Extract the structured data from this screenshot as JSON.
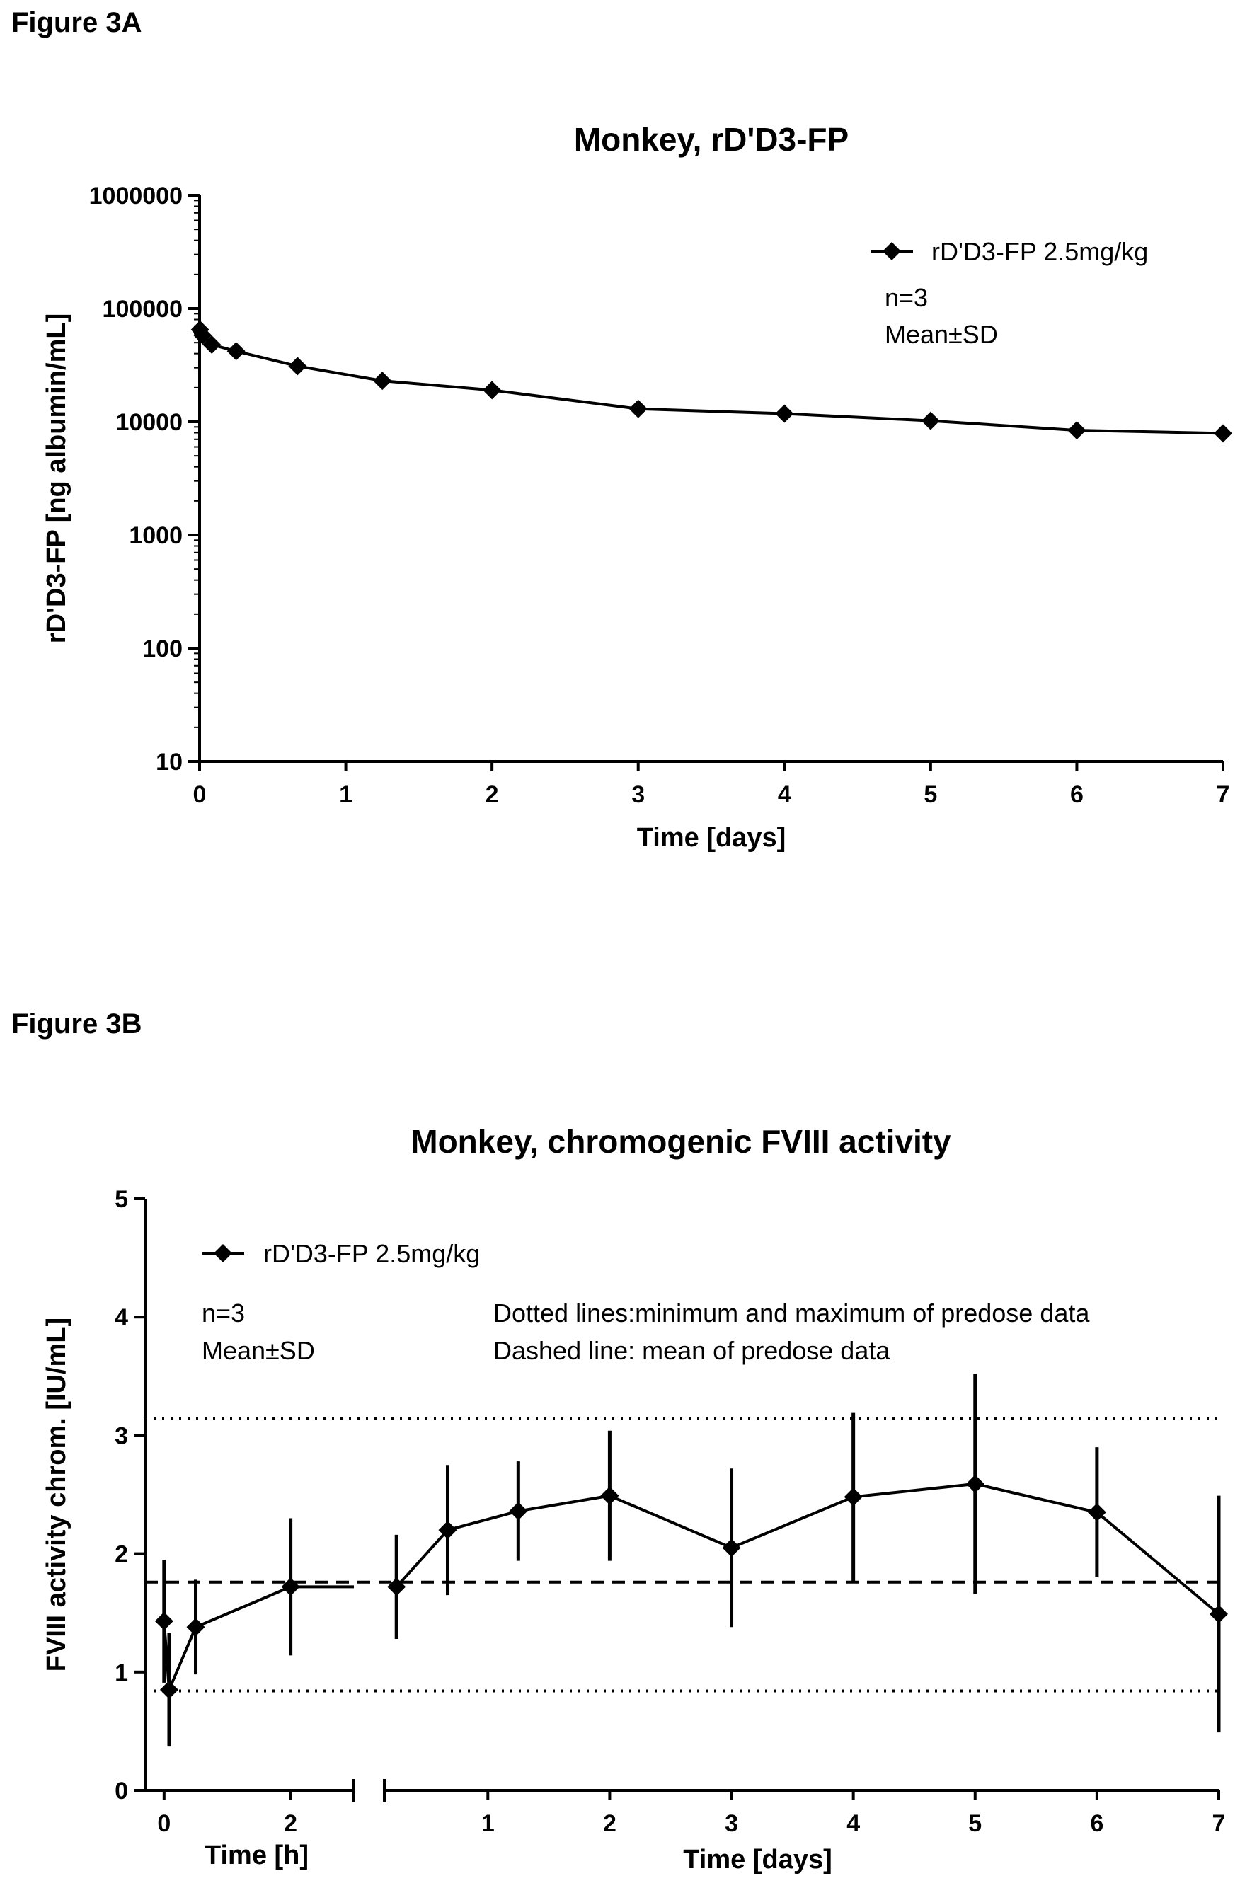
{
  "figures": {
    "a_label": "Figure 3A",
    "b_label": "Figure 3B"
  },
  "chart_data": [
    {
      "type": "line",
      "title": "Monkey, rD'D3-FP",
      "xlabel": "Time [days]",
      "ylabel": "rD'D3-FP [ng albumin/mL]",
      "y_scale": "log",
      "xlim": [
        0,
        7
      ],
      "ylim": [
        10,
        1000000
      ],
      "x_ticks": [
        "0",
        "1",
        "2",
        "3",
        "4",
        "5",
        "6",
        "7"
      ],
      "y_ticks": [
        "10",
        "100",
        "1000",
        "10000",
        "100000",
        "1000000"
      ],
      "legend_position": "top-right",
      "series": [
        {
          "name": "rD'D3-FP 2.5mg/kg",
          "marker": "diamond",
          "color": "#000000",
          "x": [
            0.003,
            0.0208,
            0.0833,
            0.25,
            0.67,
            1.25,
            2,
            3,
            4,
            5,
            6,
            7
          ],
          "y": [
            65000,
            58000,
            48000,
            42000,
            31000,
            23000,
            19000,
            13000,
            11800,
            10200,
            8400,
            7900
          ]
        }
      ],
      "annotations": [
        "n=3",
        "Mean±SD"
      ]
    },
    {
      "type": "line",
      "title": "Monkey, chromogenic FVIII activity",
      "ylabel": "FVIII activity chrom. [IU/mL]",
      "ylim": [
        0,
        5
      ],
      "y_ticks": [
        "0",
        "1",
        "2",
        "3",
        "4",
        "5"
      ],
      "x_axis_break": true,
      "x_segments": [
        {
          "xlabel": "Time [h]",
          "range": [
            -0.3,
            3.0
          ],
          "ticks": [
            "0",
            "2"
          ]
        },
        {
          "xlabel": "Time [days]",
          "range": [
            0.15,
            7.0
          ],
          "ticks": [
            "1",
            "2",
            "3",
            "4",
            "5",
            "6",
            "7"
          ]
        }
      ],
      "legend_position": "top-left",
      "series": [
        {
          "name": "rD'D3-FP 2.5mg/kg",
          "marker": "diamond",
          "color": "#000000",
          "hours": {
            "x": [
              0.0,
              0.08,
              0.5,
              2.0
            ],
            "y": [
              1.43,
              0.85,
              1.38,
              1.72
            ],
            "y_err": [
              0.52,
              0.48,
              0.4,
              0.58
            ]
          },
          "days": {
            "x": [
              0.25,
              0.67,
              1.25,
              2,
              3,
              4,
              5,
              6,
              7
            ],
            "y": [
              1.72,
              2.2,
              2.36,
              2.49,
              2.05,
              2.48,
              2.59,
              2.35,
              1.49
            ],
            "y_err": [
              0.44,
              0.55,
              0.42,
              0.55,
              0.67,
              0.71,
              0.93,
              0.55,
              1.0
            ]
          }
        }
      ],
      "reference_lines": [
        {
          "style": "dotted",
          "y": 3.14
        },
        {
          "style": "dashed",
          "y": 1.76
        },
        {
          "style": "dotted",
          "y": 0.84
        }
      ],
      "annotations": [
        "n=3",
        "Mean±SD",
        "Dotted lines:minimum and maximum of predose data",
        "Dashed line: mean of predose data"
      ]
    }
  ]
}
